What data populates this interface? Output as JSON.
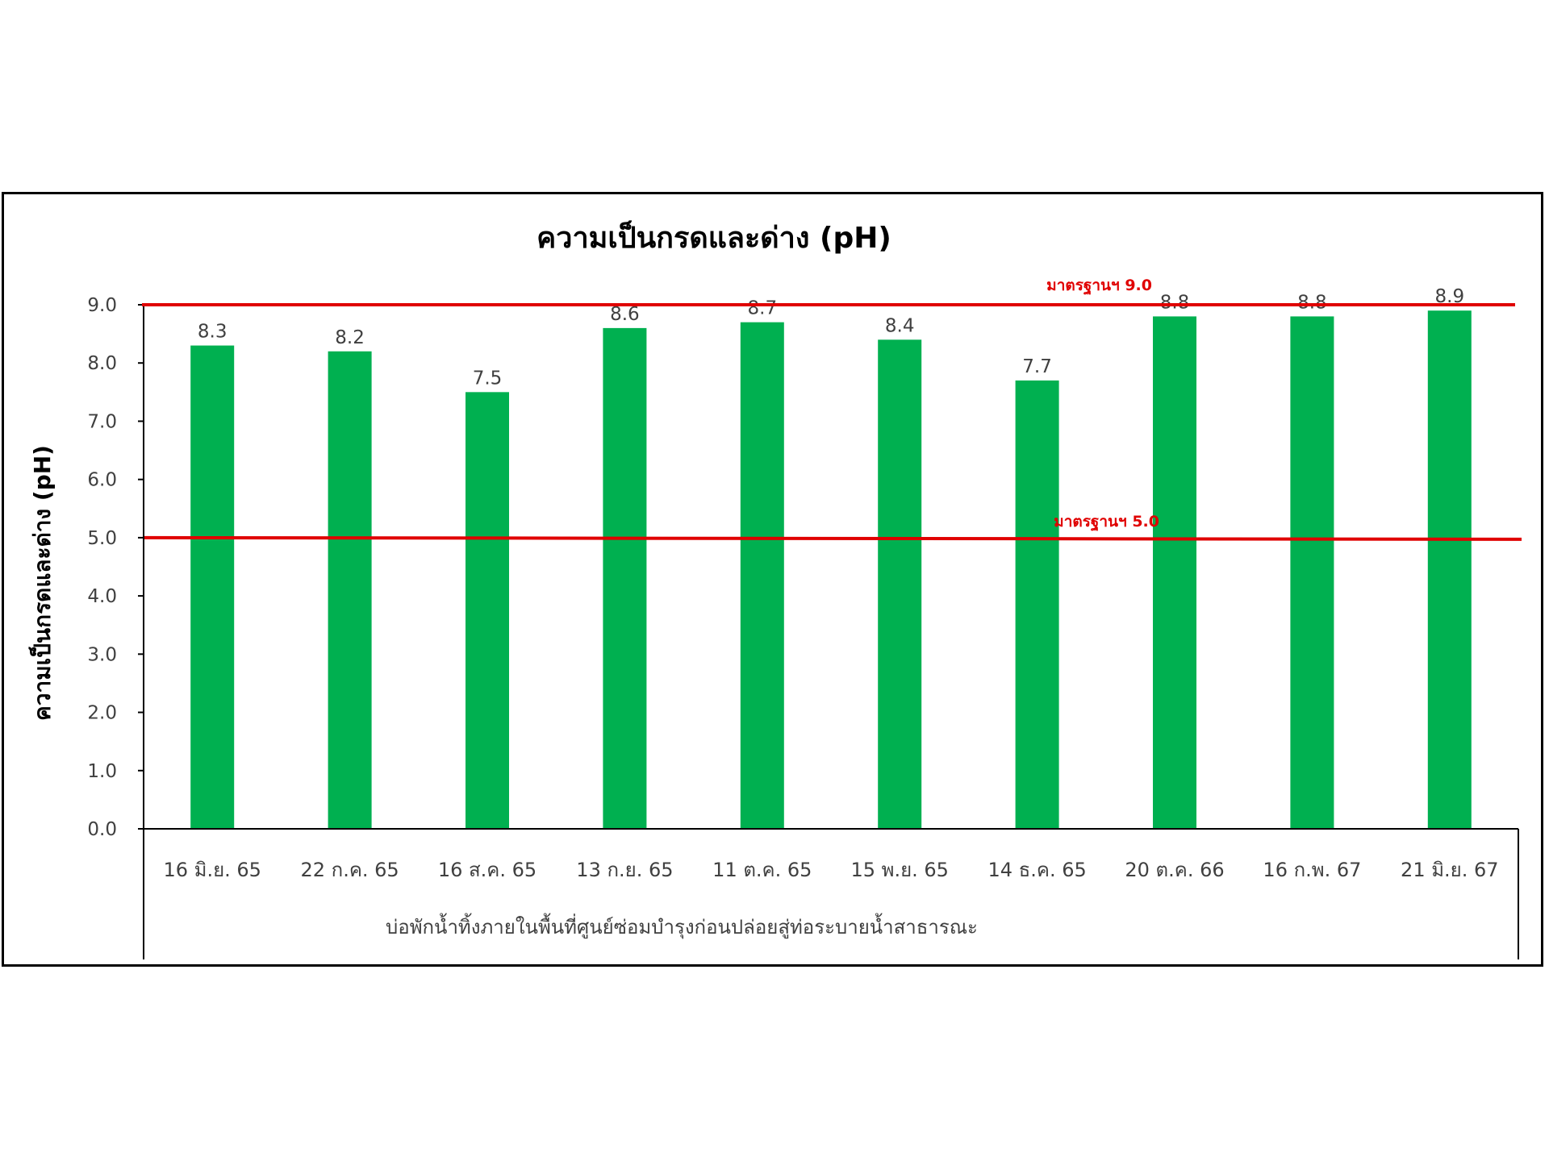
{
  "chart_data": {
    "type": "bar",
    "title": "ความเป็นกรดและด่าง (pH)",
    "xlabel": "บ่อพักน้ำทิ้งภายในพื้นที่ศูนย์ซ่อมบำรุงก่อนปล่อยสู่ท่อระบายน้ำสาธารณะ",
    "ylabel": "ความเป็นกรดและด่าง  (pH)",
    "categories": [
      "16 มิ.ย. 65",
      "22 ก.ค. 65",
      "16 ส.ค. 65",
      "13 ก.ย. 65",
      "11 ต.ค. 65",
      "15 พ.ย. 65",
      "14 ธ.ค. 65",
      "20 ต.ค. 66",
      "16 ก.พ. 67",
      "21 มิ.ย. 67"
    ],
    "values": [
      8.3,
      8.2,
      7.5,
      8.6,
      8.7,
      8.4,
      7.7,
      8.8,
      8.8,
      8.9
    ],
    "data_labels": [
      "8.3",
      "8.2",
      "7.5",
      "8.6",
      "8.7",
      "8.4",
      "7.7",
      "8.8",
      "8.8",
      "8.9"
    ],
    "ylim": [
      0,
      9
    ],
    "yticks": [
      "0.0",
      "1.0",
      "2.0",
      "3.0",
      "4.0",
      "5.0",
      "6.0",
      "7.0",
      "8.0",
      "9.0"
    ],
    "grid": false,
    "legend": "none",
    "reference_lines": [
      {
        "value": 9.0,
        "label": "มาตรฐานฯ 9.0"
      },
      {
        "value": 5.0,
        "label": "มาตรฐานฯ 5.0"
      }
    ],
    "colors": {
      "bar": "#00b050",
      "reference": "#e00000",
      "axis": "#000000",
      "text": "#404040"
    }
  }
}
